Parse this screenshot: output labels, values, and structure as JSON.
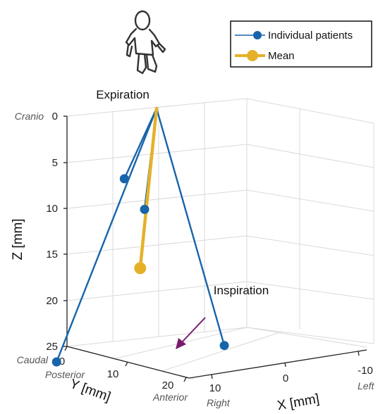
{
  "chart_data": {
    "type": "line",
    "projection": "3d",
    "xlabel": "X [mm]",
    "ylabel": "Y [mm]",
    "zlabel": "Z [mm]",
    "x_ticks": [
      "10",
      "0",
      "-10"
    ],
    "y_ticks": [
      "0",
      "10",
      "20"
    ],
    "z_ticks": [
      "0",
      "5",
      "10",
      "15",
      "20",
      "25"
    ],
    "zlim": [
      0,
      25
    ],
    "z_reversed": true,
    "grid": true,
    "legend_position": "top-right",
    "direction_labels": {
      "z_top": "Cranio",
      "z_bottom": "Caudal",
      "y_start": "Posterior",
      "y_end": "Anterior",
      "x_start": "Right",
      "x_end": "Left"
    },
    "annotations": {
      "start": "Expiration",
      "end": "Inspiration"
    },
    "series": [
      {
        "name": "Individual patients",
        "color": "#1764ab",
        "trajectories": [
          {
            "start": [
              0,
              0,
              0
            ],
            "end": [
              4,
              7,
              6.7
            ]
          },
          {
            "start": [
              0,
              0,
              0
            ],
            "end": [
              1,
              6,
              10
            ]
          },
          {
            "start": [
              0,
              0,
              0
            ],
            "end": [
              -11,
              3,
              24.5
            ]
          },
          {
            "start": [
              0,
              0,
              0
            ],
            "end": [
              13,
              20,
              25
            ]
          }
        ]
      },
      {
        "name": "Mean",
        "color": "#e6b128",
        "trajectories": [
          {
            "start": [
              0,
              0,
              0
            ],
            "end": [
              2,
              6,
              16.5
            ]
          }
        ]
      }
    ]
  }
}
